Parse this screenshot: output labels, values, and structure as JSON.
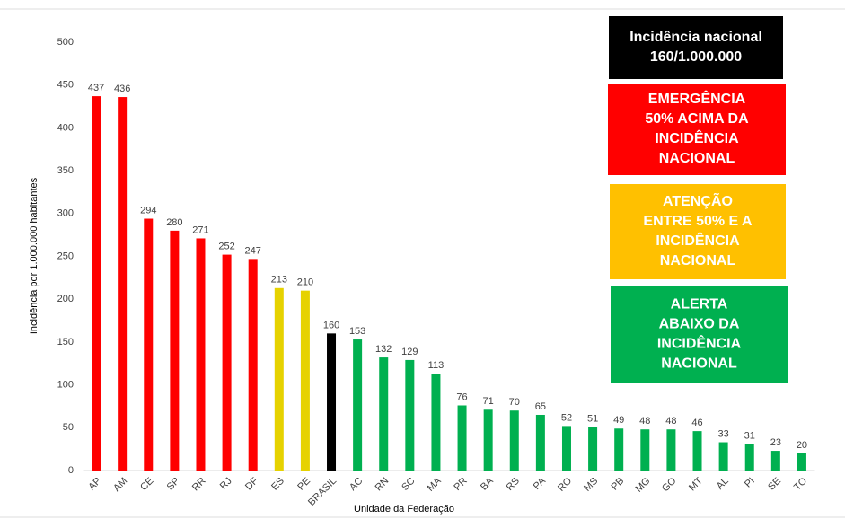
{
  "chart_data": {
    "type": "bar",
    "categories": [
      "AP",
      "AM",
      "CE",
      "SP",
      "RR",
      "RJ",
      "DF",
      "ES",
      "PE",
      "BRASIL",
      "AC",
      "RN",
      "SC",
      "MA",
      "PR",
      "BA",
      "RS",
      "PA",
      "RO",
      "MS",
      "PB",
      "MG",
      "GO",
      "MT",
      "AL",
      "PI",
      "SE",
      "TO"
    ],
    "values": [
      437,
      436,
      294,
      280,
      271,
      252,
      247,
      213,
      210,
      160,
      153,
      132,
      129,
      113,
      76,
      71,
      70,
      65,
      52,
      51,
      49,
      48,
      48,
      46,
      33,
      31,
      23,
      20
    ],
    "colors": [
      "#ff0000",
      "#ff0000",
      "#ff0000",
      "#ff0000",
      "#ff0000",
      "#ff0000",
      "#ff0000",
      "#e6d200",
      "#e6d200",
      "#000000",
      "#00b050",
      "#00b050",
      "#00b050",
      "#00b050",
      "#00b050",
      "#00b050",
      "#00b050",
      "#00b050",
      "#00b050",
      "#00b050",
      "#00b050",
      "#00b050",
      "#00b050",
      "#00b050",
      "#00b050",
      "#00b050",
      "#00b050",
      "#00b050"
    ],
    "ylim": [
      0,
      500
    ],
    "yticks": [
      0,
      50,
      100,
      150,
      200,
      250,
      300,
      350,
      400,
      450,
      500
    ],
    "ylabel": "Incidência por 1.000.000 habitantes",
    "xlabel": "Unidade da Federação",
    "legend_boxes": [
      {
        "color": "#000000",
        "lines": [
          "Incidência nacional",
          "160/1.000.000"
        ]
      },
      {
        "color": "#ff0000",
        "lines": [
          "EMERGÊNCIA",
          "50% ACIMA DA",
          "INCIDÊNCIA",
          "NACIONAL"
        ]
      },
      {
        "color": "#ffc000",
        "lines": [
          "ATENÇÃO",
          "ENTRE 50% E A",
          "INCIDÊNCIA",
          "NACIONAL"
        ]
      },
      {
        "color": "#00b050",
        "lines": [
          "ALERTA",
          "ABAIXO DA",
          "INCIDÊNCIA",
          "NACIONAL"
        ]
      }
    ]
  }
}
